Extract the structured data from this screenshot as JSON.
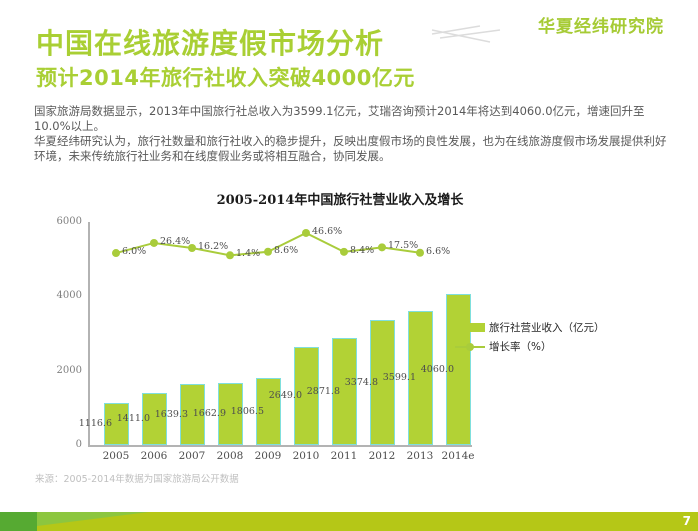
{
  "page": {
    "logo": "华夏经纬研究院",
    "title": "中国在线旅游度假市场分析",
    "subtitle": "预计2014年旅行社收入突破4000亿元",
    "paragraphs": [
      "国家旅游局数据显示，2013年中国旅行社总收入为3599.1亿元，艾瑞咨询预计2014年将达到4060.0亿元，增速回升至10.0%以上。",
      "华夏经纬研究认为，旅行社数量和旅行社收入的稳步提升，反映出度假市场的良性发展，也为在线旅游度假市场发展提供利好环境，未来传统旅行社业务和在线度假业务或将相互融合，协同发展。"
    ],
    "source": "来源：2005-2014年数据为国家旅游局公开数据",
    "page_number": "7"
  },
  "chart_data": {
    "type": "bar",
    "title": "2005-2014年中国旅行社营业收入及增长",
    "categories": [
      "2005",
      "2006",
      "2007",
      "2008",
      "2009",
      "2010",
      "2011",
      "2012",
      "2013",
      "2014e"
    ],
    "series": [
      {
        "name": "旅行社营业收入（亿元）",
        "type": "bar",
        "values": [
          1116.6,
          1411.0,
          1639.3,
          1662.9,
          1806.5,
          2649.0,
          2871.8,
          3374.8,
          3599.1,
          4060.0
        ],
        "labels": [
          "1116.6",
          "1411.0",
          "1639.3",
          "1662.9",
          "1806.5",
          "2649.0",
          "2871.8",
          "3374.8",
          "3599.1",
          "4060.0"
        ]
      },
      {
        "name": "增长率（%）",
        "type": "line",
        "values": [
          6.0,
          26.4,
          16.2,
          1.4,
          8.6,
          46.6,
          8.4,
          17.5,
          6.6,
          null
        ],
        "labels": [
          "6.0%",
          "26.4%",
          "16.2%",
          "1.4%",
          "8.6%",
          "46.6%",
          "8.4%",
          "17.5%",
          "6.6%",
          ""
        ]
      }
    ],
    "ylim": [
      0,
      6000
    ],
    "yticks": [
      0,
      2000,
      4000,
      6000
    ],
    "grid": false,
    "legend_position": "right-middle",
    "colors": {
      "bar": "#b2d235",
      "bar_border": "#7fdfdd",
      "line": "#a9cc3b",
      "label_text": "#4d4d4d",
      "axis": "#b3b3b3"
    }
  }
}
